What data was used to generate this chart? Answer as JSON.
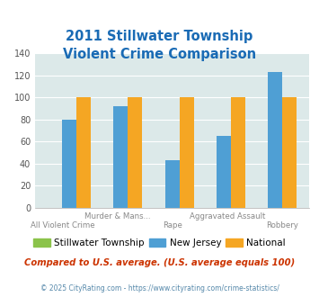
{
  "title": "2011 Stillwater Township\nViolent Crime Comparison",
  "x_labels_top": [
    "",
    "Murder & Mans...",
    "",
    "Aggravated Assault",
    ""
  ],
  "x_labels_bot": [
    "All Violent Crime",
    "",
    "Rape",
    "",
    "Robbery"
  ],
  "stillwater": [
    0,
    0,
    0,
    0,
    0
  ],
  "new_jersey": [
    80,
    92,
    43,
    65,
    123
  ],
  "national": [
    100,
    100,
    100,
    100,
    100
  ],
  "color_stillwater": "#8bc34a",
  "color_nj": "#4f9fd4",
  "color_national": "#f5a623",
  "ylim": [
    0,
    140
  ],
  "yticks": [
    0,
    20,
    40,
    60,
    80,
    100,
    120,
    140
  ],
  "bg_color": "#dce9e9",
  "title_color": "#1a6bb5",
  "legend_labels": [
    "Stillwater Township",
    "New Jersey",
    "National"
  ],
  "footnote1": "Compared to U.S. average. (U.S. average equals 100)",
  "footnote2": "© 2025 CityRating.com - https://www.cityrating.com/crime-statistics/",
  "footnote1_color": "#cc3300",
  "footnote2_color": "#5588aa"
}
